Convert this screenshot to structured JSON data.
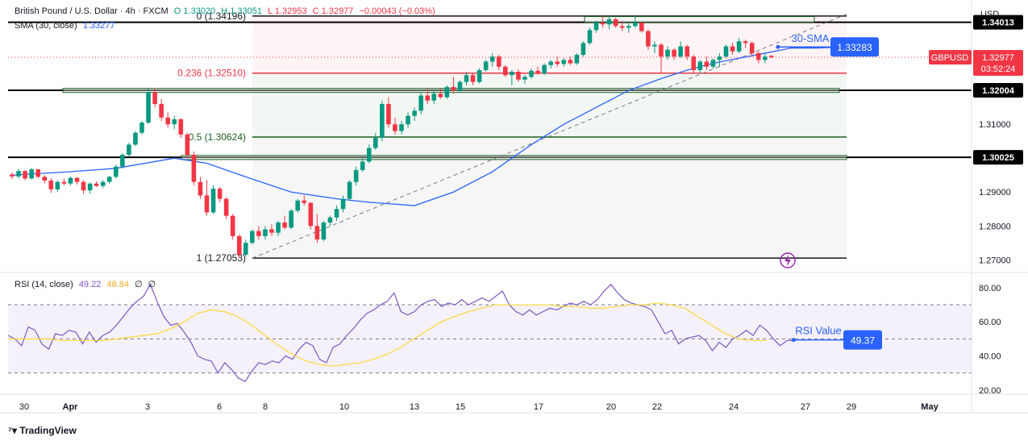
{
  "header": {
    "symbol": "British Pound / U.S. Dollar · 4h · FXCM",
    "ohlc_open": "O 1.33020",
    "ohlc_high": "H 1.33051",
    "ohlc_low": "L 1.32953",
    "ohlc_close": "C 1.32977",
    "change": "−0.00043 (−0.03%)",
    "sma_label": "SMA (30, close)",
    "sma_value": "1.33277"
  },
  "currency": "USD",
  "rsi_header": {
    "label": "RSI (14, close)",
    "value1": "49.22",
    "value2": "48.84",
    "value3": "∅",
    "value4": "∅"
  },
  "annotations": {
    "sma_label": "30-SMA",
    "sma_value": "1.33283",
    "rsi_label": "RSI Value",
    "rsi_value": "49.37",
    "symbol_tag": "GBPUSD",
    "last_price": "1.32977",
    "countdown": "03:52:24"
  },
  "fib_labels": {
    "f0": "0 (1.34196)",
    "f236": "0.236 (1.32510)",
    "f5": "0.5 (1.30624)",
    "f1": "1 (1.27053)"
  },
  "level_labels": [
    "1.34013",
    "1.32004",
    "1.30025"
  ],
  "footer": {
    "brand": "TradingView"
  },
  "colors": {
    "up": "#089981",
    "down": "#f23645",
    "sma": "#2962ff",
    "rsi": "#7e57c2",
    "rsi_ma": "#fdd835",
    "fib_red": "#f23645",
    "fib_green": "#1b5e20"
  },
  "chart_data": [
    {
      "type": "candlestick",
      "x_ticks": [
        "30",
        "Apr",
        "3",
        "6",
        "8",
        "10",
        "13",
        "15",
        "17",
        "20",
        "22",
        "24",
        "27",
        "29",
        "May"
      ],
      "y_ticks": [
        "1.27000",
        "1.28000",
        "1.29000",
        "1.31000"
      ],
      "ylim": [
        1.2665,
        1.3455
      ],
      "horizontal_levels": [
        1.34013,
        1.32004,
        1.30025
      ],
      "fib_levels": [
        {
          "ratio": "0",
          "price": 1.34196
        },
        {
          "ratio": "0.236",
          "price": 1.3251
        },
        {
          "ratio": "0.5",
          "price": 1.30624
        },
        {
          "ratio": "1",
          "price": 1.27053
        }
      ],
      "candles": [
        [
          1.2952,
          1.2958,
          1.2938,
          1.2946
        ],
        [
          1.2946,
          1.2968,
          1.294,
          1.2962
        ],
        [
          1.2962,
          1.2965,
          1.2935,
          1.294
        ],
        [
          1.294,
          1.2972,
          1.2937,
          1.2967
        ],
        [
          1.2967,
          1.2969,
          1.294,
          1.2945
        ],
        [
          1.2945,
          1.295,
          1.2925,
          1.2934
        ],
        [
          1.2934,
          1.2941,
          1.2898,
          1.2908
        ],
        [
          1.2908,
          1.2935,
          1.29,
          1.293
        ],
        [
          1.293,
          1.294,
          1.292,
          1.2925
        ],
        [
          1.2925,
          1.2945,
          1.292,
          1.2942
        ],
        [
          1.2942,
          1.2944,
          1.2922,
          1.293
        ],
        [
          1.293,
          1.2935,
          1.2895,
          1.2905
        ],
        [
          1.2905,
          1.2928,
          1.2895,
          1.2925
        ],
        [
          1.2925,
          1.2932,
          1.2915,
          1.2918
        ],
        [
          1.2918,
          1.2935,
          1.2912,
          1.293
        ],
        [
          1.293,
          1.2948,
          1.2925,
          1.2945
        ],
        [
          1.2945,
          1.298,
          1.294,
          1.2975
        ],
        [
          1.2975,
          1.3015,
          1.297,
          1.301
        ],
        [
          1.301,
          1.3045,
          1.3005,
          1.304
        ],
        [
          1.304,
          1.308,
          1.3035,
          1.3075
        ],
        [
          1.3075,
          1.311,
          1.307,
          1.3105
        ],
        [
          1.3105,
          1.3205,
          1.31,
          1.3195
        ],
        [
          1.3195,
          1.3208,
          1.315,
          1.316
        ],
        [
          1.316,
          1.3175,
          1.311,
          1.312
        ],
        [
          1.312,
          1.3135,
          1.309,
          1.31
        ],
        [
          1.31,
          1.3125,
          1.3085,
          1.3115
        ],
        [
          1.3115,
          1.3118,
          1.306,
          1.307
        ],
        [
          1.307,
          1.3075,
          1.3,
          1.301
        ],
        [
          1.301,
          1.302,
          1.292,
          1.293
        ],
        [
          1.293,
          1.2945,
          1.288,
          1.289
        ],
        [
          1.289,
          1.2935,
          1.283,
          1.284
        ],
        [
          1.284,
          1.292,
          1.2835,
          1.291
        ],
        [
          1.291,
          1.2915,
          1.287,
          1.288
        ],
        [
          1.288,
          1.2885,
          1.282,
          1.283
        ],
        [
          1.283,
          1.2835,
          1.276,
          1.277
        ],
        [
          1.277,
          1.2775,
          1.2705,
          1.2715
        ],
        [
          1.2715,
          1.276,
          1.271,
          1.275
        ],
        [
          1.275,
          1.279,
          1.2745,
          1.2785
        ],
        [
          1.2785,
          1.28,
          1.276,
          1.277
        ],
        [
          1.277,
          1.28,
          1.276,
          1.279
        ],
        [
          1.279,
          1.2805,
          1.277,
          1.278
        ],
        [
          1.278,
          1.2815,
          1.277,
          1.281
        ],
        [
          1.281,
          1.283,
          1.279,
          1.2795
        ],
        [
          1.2795,
          1.285,
          1.279,
          1.2845
        ],
        [
          1.2845,
          1.288,
          1.284,
          1.2875
        ],
        [
          1.2875,
          1.289,
          1.286,
          1.2868
        ],
        [
          1.2868,
          1.287,
          1.279,
          1.28
        ],
        [
          1.28,
          1.2835,
          1.275,
          1.276
        ],
        [
          1.276,
          1.2815,
          1.2755,
          1.281
        ],
        [
          1.281,
          1.283,
          1.28,
          1.2825
        ],
        [
          1.2825,
          1.286,
          1.2815,
          1.285
        ],
        [
          1.285,
          1.289,
          1.284,
          1.288
        ],
        [
          1.288,
          1.2935,
          1.2875,
          1.293
        ],
        [
          1.293,
          1.2975,
          1.292,
          1.2965
        ],
        [
          1.2965,
          1.3,
          1.296,
          1.299
        ],
        [
          1.299,
          1.304,
          1.2985,
          1.303
        ],
        [
          1.303,
          1.3075,
          1.3025,
          1.306
        ],
        [
          1.306,
          1.317,
          1.305,
          1.316
        ],
        [
          1.316,
          1.318,
          1.309,
          1.31
        ],
        [
          1.31,
          1.312,
          1.307,
          1.308
        ],
        [
          1.308,
          1.311,
          1.307,
          1.31
        ],
        [
          1.31,
          1.3135,
          1.309,
          1.3125
        ],
        [
          1.3125,
          1.315,
          1.311,
          1.314
        ],
        [
          1.314,
          1.3195,
          1.313,
          1.3185
        ],
        [
          1.3185,
          1.3205,
          1.316,
          1.317
        ],
        [
          1.317,
          1.32,
          1.316,
          1.319
        ],
        [
          1.319,
          1.3205,
          1.3175,
          1.318
        ],
        [
          1.318,
          1.3215,
          1.3175,
          1.321
        ],
        [
          1.321,
          1.324,
          1.319,
          1.32
        ],
        [
          1.32,
          1.323,
          1.3195,
          1.3225
        ],
        [
          1.3225,
          1.3255,
          1.3215,
          1.3245
        ],
        [
          1.3245,
          1.325,
          1.3215,
          1.3225
        ],
        [
          1.3225,
          1.3265,
          1.322,
          1.326
        ],
        [
          1.326,
          1.329,
          1.3255,
          1.3285
        ],
        [
          1.3285,
          1.331,
          1.327,
          1.33
        ],
        [
          1.33,
          1.3305,
          1.326,
          1.327
        ],
        [
          1.327,
          1.3275,
          1.324,
          1.3245
        ],
        [
          1.3245,
          1.326,
          1.3215,
          1.3255
        ],
        [
          1.3255,
          1.3262,
          1.3225,
          1.3232
        ],
        [
          1.3232,
          1.3245,
          1.322,
          1.324
        ],
        [
          1.324,
          1.3265,
          1.3235,
          1.3258
        ],
        [
          1.3258,
          1.327,
          1.3245,
          1.325
        ],
        [
          1.325,
          1.328,
          1.3245,
          1.3275
        ],
        [
          1.3275,
          1.329,
          1.3265,
          1.3285
        ],
        [
          1.3285,
          1.33,
          1.327,
          1.3278
        ],
        [
          1.3278,
          1.3295,
          1.327,
          1.329
        ],
        [
          1.329,
          1.33,
          1.3275,
          1.328
        ],
        [
          1.328,
          1.331,
          1.3275,
          1.3305
        ],
        [
          1.3305,
          1.3345,
          1.33,
          1.334
        ],
        [
          1.334,
          1.3385,
          1.3335,
          1.3378
        ],
        [
          1.3378,
          1.3405,
          1.337,
          1.34
        ],
        [
          1.34,
          1.342,
          1.3385,
          1.3395
        ],
        [
          1.3395,
          1.3418,
          1.338,
          1.341
        ],
        [
          1.341,
          1.3415,
          1.3385,
          1.339
        ],
        [
          1.339,
          1.3405,
          1.3375,
          1.3385
        ],
        [
          1.3385,
          1.34,
          1.337,
          1.339
        ],
        [
          1.339,
          1.342,
          1.3385,
          1.34
        ],
        [
          1.34,
          1.3402,
          1.337,
          1.3375
        ],
        [
          1.3375,
          1.338,
          1.332,
          1.333
        ],
        [
          1.333,
          1.3345,
          1.331,
          1.3335
        ],
        [
          1.3335,
          1.334,
          1.325,
          1.33
        ],
        [
          1.33,
          1.333,
          1.329,
          1.332
        ],
        [
          1.332,
          1.3325,
          1.329,
          1.33
        ],
        [
          1.33,
          1.3345,
          1.3295,
          1.333
        ],
        [
          1.333,
          1.3335,
          1.329,
          1.33
        ],
        [
          1.33,
          1.3305,
          1.325,
          1.326
        ],
        [
          1.326,
          1.329,
          1.325,
          1.3285
        ],
        [
          1.3285,
          1.33,
          1.326,
          1.327
        ],
        [
          1.327,
          1.3295,
          1.3265,
          1.329
        ],
        [
          1.329,
          1.331,
          1.327,
          1.33
        ],
        [
          1.33,
          1.3335,
          1.3295,
          1.333
        ],
        [
          1.333,
          1.334,
          1.3305,
          1.3315
        ],
        [
          1.3315,
          1.3355,
          1.331,
          1.3345
        ],
        [
          1.3345,
          1.335,
          1.3325,
          1.334
        ],
        [
          1.334,
          1.3345,
          1.33,
          1.331
        ],
        [
          1.331,
          1.3315,
          1.328,
          1.329
        ],
        [
          1.329,
          1.331,
          1.328,
          1.33
        ],
        [
          1.3302,
          1.3305,
          1.3295,
          1.3298
        ]
      ],
      "sma30": [
        1.295,
        1.296,
        1.297,
        1.3,
        1.2985,
        1.2945,
        1.29,
        1.288,
        1.287,
        1.286,
        1.29,
        1.296,
        1.304,
        1.31,
        1.315,
        1.32,
        1.3235,
        1.326,
        1.328,
        1.3295,
        1.331,
        1.3325,
        1.3325,
        1.3328
      ],
      "sma30_x_index": [
        0,
        9,
        16,
        25,
        30,
        36,
        43,
        50,
        55,
        62,
        68,
        74,
        80,
        85,
        90,
        95,
        100,
        104,
        108,
        112,
        116,
        120,
        124,
        128
      ]
    },
    {
      "type": "line",
      "name": "RSI (14, close)",
      "y_ticks": [
        "20.00",
        "40.00",
        "60.00",
        "80.00"
      ],
      "ylim": [
        18,
        88
      ],
      "bands": [
        30,
        50,
        70
      ],
      "rsi": [
        52,
        50,
        46,
        57,
        55,
        47,
        44,
        53,
        52,
        55,
        54,
        47,
        54,
        48,
        52,
        54,
        58,
        63,
        68,
        72,
        75,
        82,
        72,
        63,
        58,
        59,
        54,
        48,
        40,
        38,
        37,
        30,
        36,
        32,
        27,
        25,
        31,
        36,
        35,
        37,
        36,
        40,
        38,
        44,
        48,
        46,
        38,
        36,
        45,
        47,
        52,
        56,
        61,
        65,
        67,
        70,
        72,
        77,
        66,
        64,
        66,
        70,
        72,
        73,
        69,
        71,
        70,
        73,
        70,
        72,
        74,
        72,
        75,
        78,
        70,
        66,
        64,
        67,
        64,
        66,
        68,
        67,
        69,
        71,
        70,
        72,
        70,
        73,
        78,
        82,
        77,
        73,
        71,
        70,
        69,
        67,
        60,
        53,
        55,
        47,
        50,
        51,
        52,
        49,
        43,
        48,
        45,
        50,
        52,
        55,
        52,
        58,
        55,
        50,
        46,
        49,
        49
      ],
      "rsi_ma": [
        50,
        50,
        50,
        50,
        49,
        49,
        49,
        49,
        50,
        51,
        52,
        53,
        56,
        60,
        65,
        67,
        66,
        63,
        58,
        52,
        46,
        41,
        37,
        35,
        34,
        35,
        36,
        38,
        41,
        45,
        50,
        55,
        60,
        63,
        66,
        68,
        70,
        70,
        70,
        70,
        70,
        69,
        69,
        68,
        68,
        69,
        70,
        70,
        71,
        70,
        68,
        63,
        58,
        53,
        50,
        49,
        49
      ],
      "rsi_ma_x_index": [
        0,
        3,
        6,
        9,
        12,
        15,
        18,
        21,
        24,
        27,
        30,
        33,
        36,
        39,
        42,
        45,
        48,
        51,
        54,
        57,
        60,
        63,
        66,
        69,
        72,
        75,
        78,
        81,
        84,
        87,
        90,
        93,
        96,
        99,
        102,
        105,
        108,
        111,
        114,
        117,
        120,
        123,
        126,
        129,
        132,
        135,
        138,
        141,
        144,
        147,
        150,
        153,
        156,
        159,
        162,
        165,
        168
      ]
    }
  ]
}
